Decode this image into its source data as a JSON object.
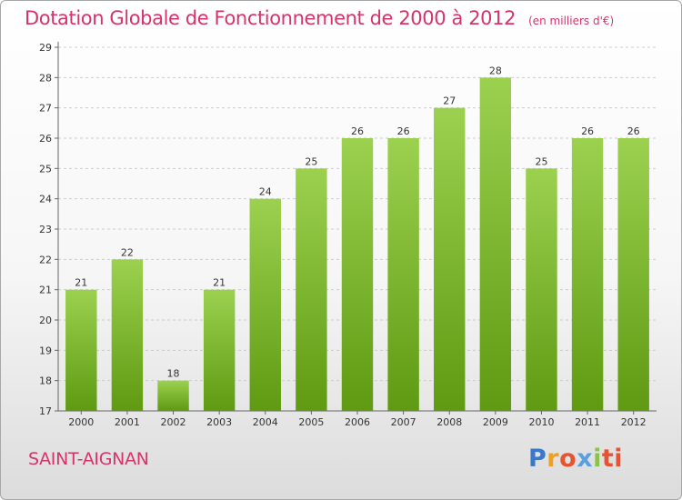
{
  "title": "Dotation Globale de Fonctionnement de 2000 à 2012",
  "unit_label": "(en milliers d'€)",
  "town": "SAINT-AIGNAN",
  "logo": [
    "P",
    "r",
    "o",
    "x",
    "i",
    "ti"
  ],
  "colors": {
    "accent": "#d6336c",
    "bar_top": "#9bd14f",
    "bar_bottom": "#5f9a12",
    "grid": "#cccccc"
  },
  "chart_data": {
    "type": "bar",
    "categories": [
      "2000",
      "2001",
      "2002",
      "2003",
      "2004",
      "2005",
      "2006",
      "2007",
      "2008",
      "2009",
      "2010",
      "2011",
      "2012"
    ],
    "values": [
      21,
      22,
      18,
      21,
      24,
      25,
      26,
      26,
      27,
      28,
      25,
      26,
      26
    ],
    "data_labels": [
      "21",
      "22",
      "18",
      "21",
      "24",
      "25",
      "26",
      "26",
      "27",
      "28",
      "25",
      "26",
      "26"
    ],
    "y_ticks": [
      "17",
      "18",
      "19",
      "20",
      "21",
      "22",
      "23",
      "24",
      "25",
      "26",
      "27",
      "28",
      "29"
    ],
    "ylim": [
      17,
      29
    ],
    "grid": true,
    "legend": "none"
  }
}
